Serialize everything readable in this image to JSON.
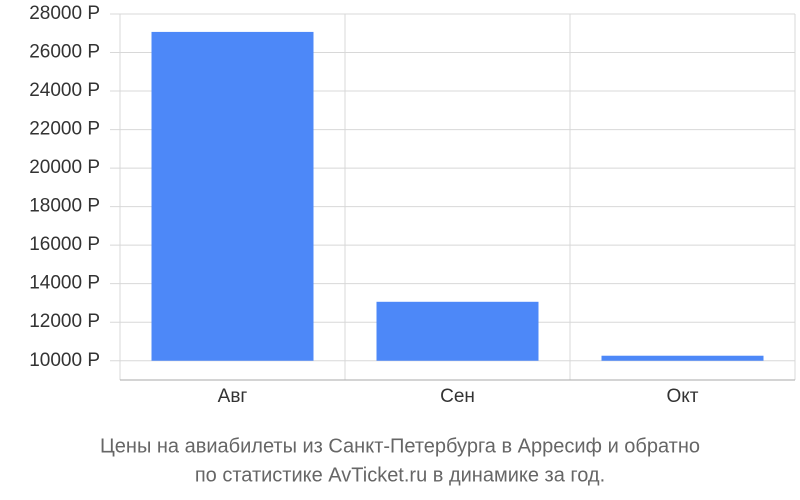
{
  "chart_data": {
    "type": "bar",
    "categories": [
      "Авг",
      "Сен",
      "Окт"
    ],
    "values": [
      27070,
      13060,
      10260
    ],
    "color": "#4d88f8",
    "ylim": [
      9000,
      28000
    ],
    "yticks": [
      {
        "value": 10000,
        "label": "10000 Р"
      },
      {
        "value": 12000,
        "label": "12000 Р"
      },
      {
        "value": 14000,
        "label": "14000 Р"
      },
      {
        "value": 16000,
        "label": "16000 Р"
      },
      {
        "value": 18000,
        "label": "18000 Р"
      },
      {
        "value": 20000,
        "label": "20000 Р"
      },
      {
        "value": 22000,
        "label": "22000 Р"
      },
      {
        "value": 24000,
        "label": "24000 Р"
      },
      {
        "value": 26000,
        "label": "26000 Р"
      },
      {
        "value": 28000,
        "label": "28000 Р"
      }
    ],
    "grid": true,
    "caption": [
      "Цены на авиабилеты из Санкт-Петербурга в Арресиф и обратно",
      "по статистике AvTicket.ru в динамике за год."
    ]
  }
}
